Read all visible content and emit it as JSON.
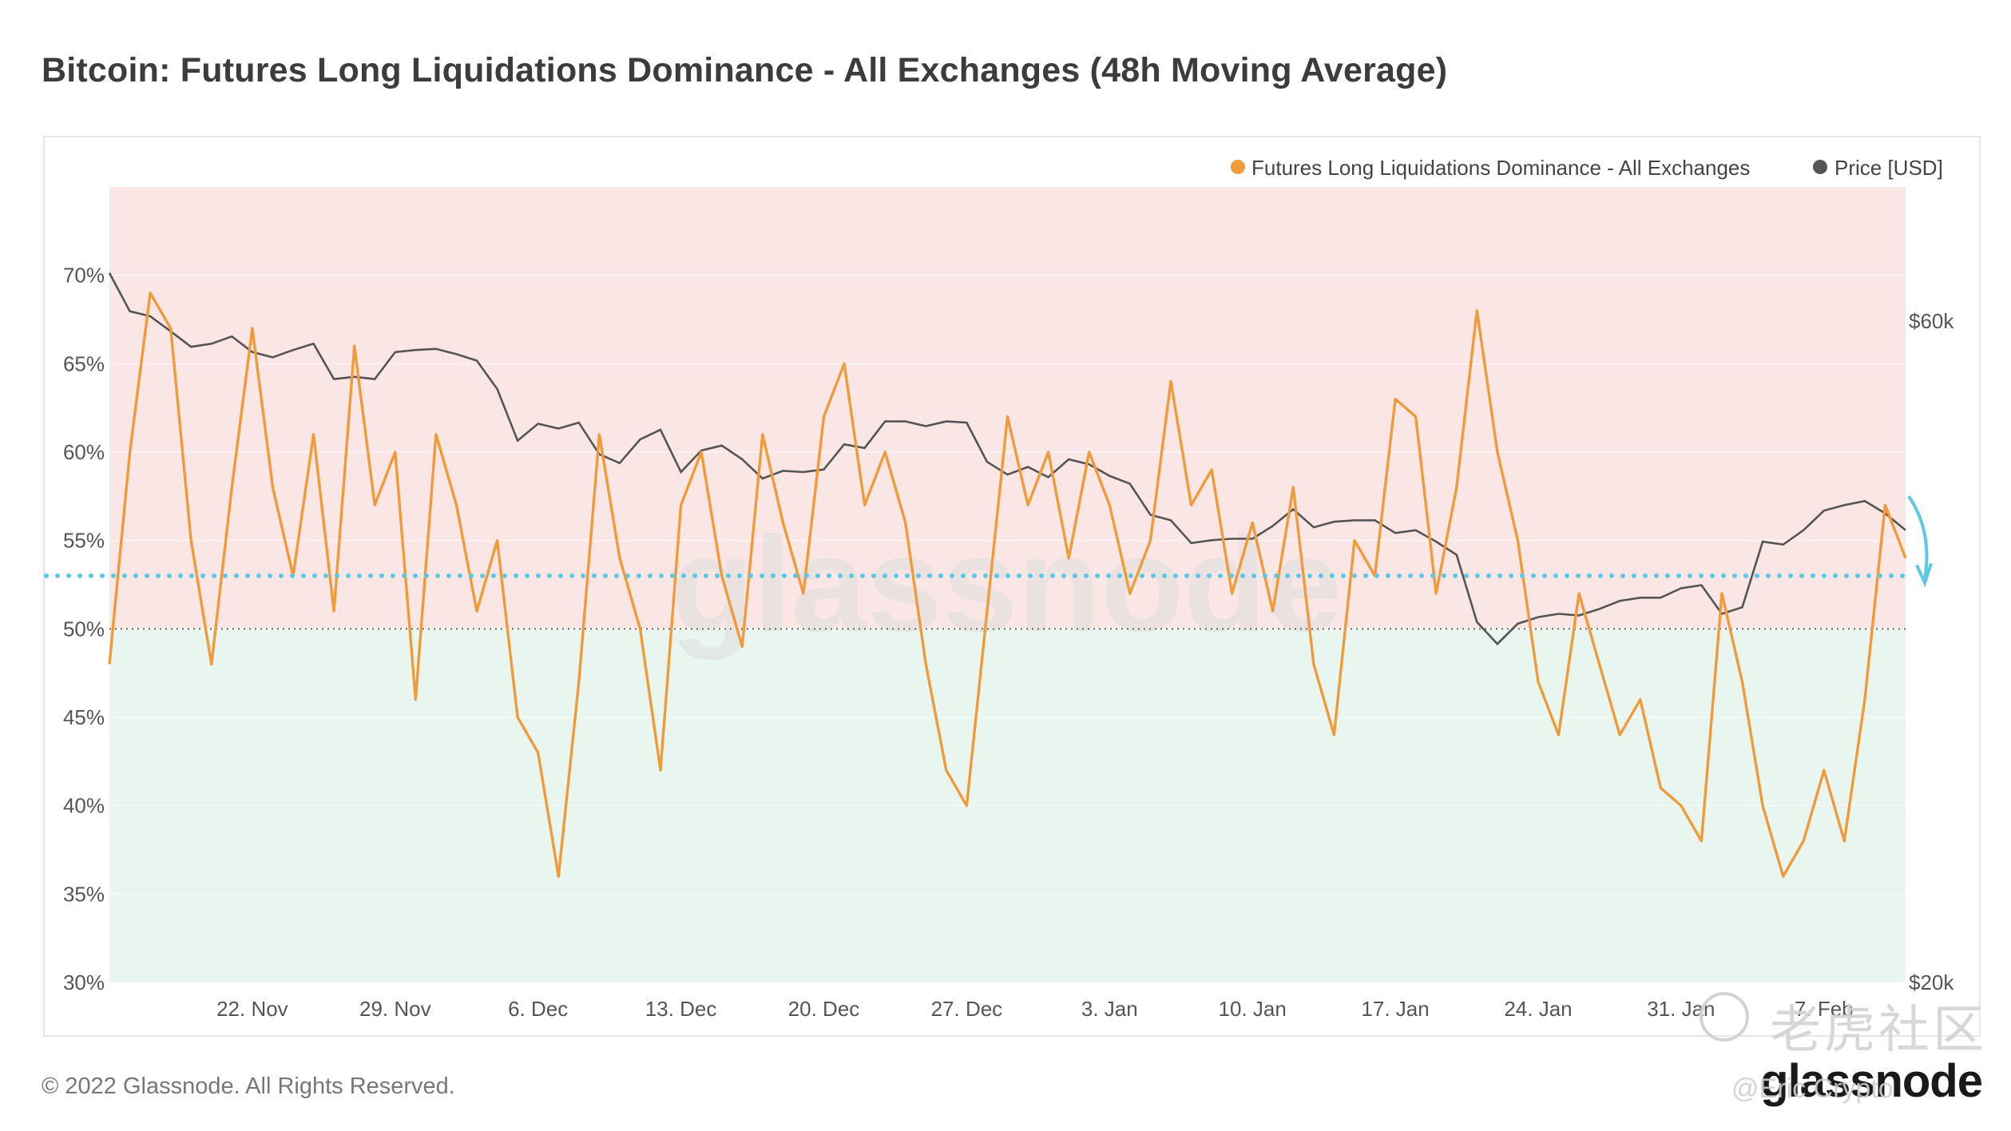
{
  "title": "Bitcoin: Futures Long Liquidations Dominance - All Exchanges (48h Moving Average)",
  "footer": "© 2022 Glassnode. All Rights Reserved.",
  "brand": "glassnode",
  "watermark_center": "glassnode",
  "watermark_cn": "老虎社区",
  "watermark_handle": "@Eric Crypto",
  "colors": {
    "dominance": "#f19a3a",
    "price": "#555555",
    "threshold": "#5cc8e6",
    "upper_zone": "#fbe6e6",
    "lower_zone": "#e9f6f0",
    "midline": "#666666"
  },
  "chart_data": {
    "type": "line",
    "legend_position": "top-right",
    "grid": true,
    "x_ticks": [
      "22. Nov",
      "29. Nov",
      "6. Dec",
      "13. Dec",
      "20. Dec",
      "27. Dec",
      "3. Jan",
      "10. Jan",
      "17. Jan",
      "24. Jan",
      "31. Jan",
      "7. Feb"
    ],
    "x_range": [
      "2021-11-15",
      "2022-02-11"
    ],
    "y_left": {
      "ticks": [
        "30%",
        "35%",
        "40%",
        "45%",
        "50%",
        "55%",
        "60%",
        "65%",
        "70%"
      ],
      "range": [
        30,
        75
      ]
    },
    "y_right": {
      "ticks": [
        "$20k",
        "$60k"
      ],
      "scale": "log",
      "range": [
        20000,
        75000
      ]
    },
    "reference_lines": {
      "dotted_midline": 50,
      "threshold": 53
    },
    "series": [
      {
        "name": "Futures Long Liquidations Dominance - All Exchanges",
        "axis": "left",
        "x": [
          "2021-11-15",
          "2021-11-16",
          "2021-11-17",
          "2021-11-18",
          "2021-11-19",
          "2021-11-20",
          "2021-11-21",
          "2021-11-22",
          "2021-11-23",
          "2021-11-24",
          "2021-11-25",
          "2021-11-26",
          "2021-11-27",
          "2021-11-28",
          "2021-11-29",
          "2021-11-30",
          "2021-12-01",
          "2021-12-02",
          "2021-12-03",
          "2021-12-04",
          "2021-12-05",
          "2021-12-06",
          "2021-12-07",
          "2021-12-08",
          "2021-12-09",
          "2021-12-10",
          "2021-12-11",
          "2021-12-12",
          "2021-12-13",
          "2021-12-14",
          "2021-12-15",
          "2021-12-16",
          "2021-12-17",
          "2021-12-18",
          "2021-12-19",
          "2021-12-20",
          "2021-12-21",
          "2021-12-22",
          "2021-12-23",
          "2021-12-24",
          "2021-12-25",
          "2021-12-26",
          "2021-12-27",
          "2021-12-28",
          "2021-12-29",
          "2021-12-30",
          "2021-12-31",
          "2022-01-01",
          "2022-01-02",
          "2022-01-03",
          "2022-01-04",
          "2022-01-05",
          "2022-01-06",
          "2022-01-07",
          "2022-01-08",
          "2022-01-09",
          "2022-01-10",
          "2022-01-11",
          "2022-01-12",
          "2022-01-13",
          "2022-01-14",
          "2022-01-15",
          "2022-01-16",
          "2022-01-17",
          "2022-01-18",
          "2022-01-19",
          "2022-01-20",
          "2022-01-21",
          "2022-01-22",
          "2022-01-23",
          "2022-01-24",
          "2022-01-25",
          "2022-01-26",
          "2022-01-27",
          "2022-01-28",
          "2022-01-29",
          "2022-01-30",
          "2022-01-31",
          "2022-02-01",
          "2022-02-02",
          "2022-02-03",
          "2022-02-04",
          "2022-02-05",
          "2022-02-06",
          "2022-02-07",
          "2022-02-08",
          "2022-02-09",
          "2022-02-10",
          "2022-02-11"
        ],
        "values": [
          48,
          60,
          69,
          67,
          55,
          48,
          58,
          67,
          58,
          53,
          61,
          51,
          66,
          57,
          60,
          46,
          61,
          57,
          51,
          55,
          45,
          43,
          36,
          47,
          61,
          54,
          50,
          42,
          57,
          60,
          53,
          49,
          61,
          56,
          52,
          62,
          65,
          57,
          60,
          56,
          48,
          42,
          40,
          51,
          62,
          57,
          60,
          54,
          60,
          57,
          52,
          55,
          64,
          57,
          59,
          52,
          56,
          51,
          58,
          48,
          44,
          55,
          53,
          63,
          62,
          52,
          58,
          68,
          60,
          55,
          47,
          44,
          52,
          48,
          44,
          46,
          41,
          40,
          38,
          52,
          47,
          40,
          36,
          38,
          42,
          38,
          46,
          57,
          54
        ]
      },
      {
        "name": "Price [USD]",
        "axis": "right",
        "x": [
          "2021-11-15",
          "2021-11-16",
          "2021-11-17",
          "2021-11-18",
          "2021-11-19",
          "2021-11-20",
          "2021-11-21",
          "2021-11-22",
          "2021-11-23",
          "2021-11-24",
          "2021-11-25",
          "2021-11-26",
          "2021-11-27",
          "2021-11-28",
          "2021-11-29",
          "2021-11-30",
          "2021-12-01",
          "2021-12-02",
          "2021-12-03",
          "2021-12-04",
          "2021-12-05",
          "2021-12-06",
          "2021-12-07",
          "2021-12-08",
          "2021-12-09",
          "2021-12-10",
          "2021-12-11",
          "2021-12-12",
          "2021-12-13",
          "2021-12-14",
          "2021-12-15",
          "2021-12-16",
          "2021-12-17",
          "2021-12-18",
          "2021-12-19",
          "2021-12-20",
          "2021-12-21",
          "2021-12-22",
          "2021-12-23",
          "2021-12-24",
          "2021-12-25",
          "2021-12-26",
          "2021-12-27",
          "2021-12-28",
          "2021-12-29",
          "2021-12-30",
          "2021-12-31",
          "2022-01-01",
          "2022-01-02",
          "2022-01-03",
          "2022-01-04",
          "2022-01-05",
          "2022-01-06",
          "2022-01-07",
          "2022-01-08",
          "2022-01-09",
          "2022-01-10",
          "2022-01-11",
          "2022-01-12",
          "2022-01-13",
          "2022-01-14",
          "2022-01-15",
          "2022-01-16",
          "2022-01-17",
          "2022-01-18",
          "2022-01-19",
          "2022-01-20",
          "2022-01-21",
          "2022-01-22",
          "2022-01-23",
          "2022-01-24",
          "2022-01-25",
          "2022-01-26",
          "2022-01-27",
          "2022-01-28",
          "2022-01-29",
          "2022-01-30",
          "2022-01-31",
          "2022-02-01",
          "2022-02-02",
          "2022-02-03",
          "2022-02-04",
          "2022-02-05",
          "2022-02-06",
          "2022-02-07",
          "2022-02-08",
          "2022-02-09",
          "2022-02-10",
          "2022-02-11"
        ],
        "values": [
          65000,
          61000,
          60500,
          59000,
          57500,
          57800,
          58500,
          57000,
          56500,
          57200,
          57800,
          54500,
          54700,
          54500,
          57000,
          57200,
          57300,
          56800,
          56200,
          53600,
          49200,
          50600,
          50200,
          50700,
          48100,
          47400,
          49300,
          50100,
          46700,
          48400,
          48800,
          47700,
          46200,
          46800,
          46700,
          46900,
          48900,
          48600,
          50800,
          50800,
          50400,
          50800,
          50700,
          47500,
          46500,
          47100,
          46300,
          47700,
          47300,
          46400,
          45800,
          43500,
          43100,
          41500,
          41700,
          41800,
          41800,
          42700,
          43900,
          42600,
          43000,
          43100,
          43100,
          42200,
          42400,
          41600,
          40700,
          36400,
          35100,
          36300,
          36700,
          36900,
          36800,
          37200,
          37700,
          37900,
          37900,
          38500,
          38700,
          36900,
          37300,
          41600,
          41400,
          42400,
          43800,
          44200,
          44500,
          43600,
          42400
        ]
      }
    ]
  }
}
